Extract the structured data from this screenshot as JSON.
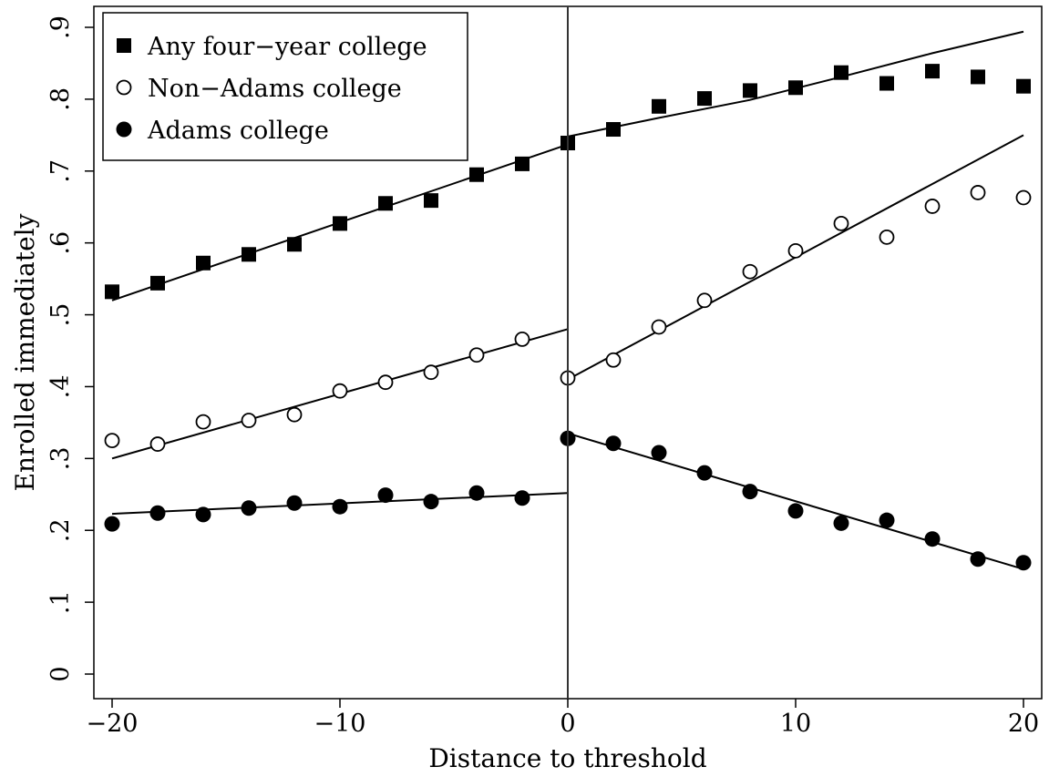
{
  "chart_data": {
    "type": "scatter",
    "xlabel": "Distance to threshold",
    "ylabel": "Enrolled immediately",
    "xlim": [
      -20,
      20
    ],
    "ylim": [
      0,
      0.9
    ],
    "x_ticks": [
      -20,
      -10,
      0,
      10,
      20
    ],
    "x_tick_labels": [
      "−20",
      "−10",
      "0",
      "10",
      "20"
    ],
    "y_ticks": [
      0,
      0.1,
      0.2,
      0.3,
      0.4,
      0.5,
      0.6,
      0.7,
      0.8,
      0.9
    ],
    "y_tick_labels": [
      "0",
      ".1",
      ".2",
      ".3",
      ".4",
      ".5",
      ".6",
      ".7",
      ".8",
      ".9"
    ],
    "threshold_x": 0,
    "legend_position": "top-left",
    "x": [
      -20,
      -18,
      -16,
      -14,
      -12,
      -10,
      -8,
      -6,
      -4,
      -2,
      0,
      2,
      4,
      6,
      8,
      10,
      12,
      14,
      16,
      18,
      20
    ],
    "series": [
      {
        "name": "Any four−year college",
        "marker": "square",
        "values": [
          0.532,
          0.544,
          0.572,
          0.584,
          0.598,
          0.627,
          0.655,
          0.659,
          0.695,
          0.71,
          0.739,
          0.758,
          0.79,
          0.801,
          0.812,
          0.816,
          0.837,
          0.822,
          0.839,
          0.831,
          0.818
        ],
        "fit_left": [
          [
            -20,
            0.52
          ],
          [
            0,
            0.737
          ]
        ],
        "fit_right": [
          [
            0,
            0.748
          ],
          [
            4,
            0.774
          ],
          [
            8,
            0.799
          ],
          [
            12,
            0.831
          ],
          [
            16,
            0.864
          ],
          [
            20,
            0.894
          ]
        ]
      },
      {
        "name": "Non−Adams college",
        "marker": "hollow-circle",
        "values": [
          0.325,
          0.32,
          0.351,
          0.353,
          0.361,
          0.394,
          0.406,
          0.42,
          0.444,
          0.466,
          0.412,
          0.437,
          0.483,
          0.52,
          0.56,
          0.589,
          0.627,
          0.608,
          0.651,
          0.67,
          0.663
        ],
        "fit_left": [
          [
            -20,
            0.3
          ],
          [
            0,
            0.48
          ]
        ],
        "fit_right": [
          [
            0,
            0.41
          ],
          [
            20,
            0.75
          ]
        ]
      },
      {
        "name": "Adams college",
        "marker": "filled-circle",
        "values": [
          0.209,
          0.224,
          0.222,
          0.231,
          0.238,
          0.233,
          0.249,
          0.24,
          0.252,
          0.245,
          0.328,
          0.321,
          0.308,
          0.28,
          0.254,
          0.227,
          0.21,
          0.214,
          0.188,
          0.16,
          0.155
        ],
        "fit_left": [
          [
            -20,
            0.223
          ],
          [
            0,
            0.252
          ]
        ],
        "fit_right": [
          [
            0,
            0.335
          ],
          [
            20,
            0.146
          ]
        ]
      }
    ]
  }
}
